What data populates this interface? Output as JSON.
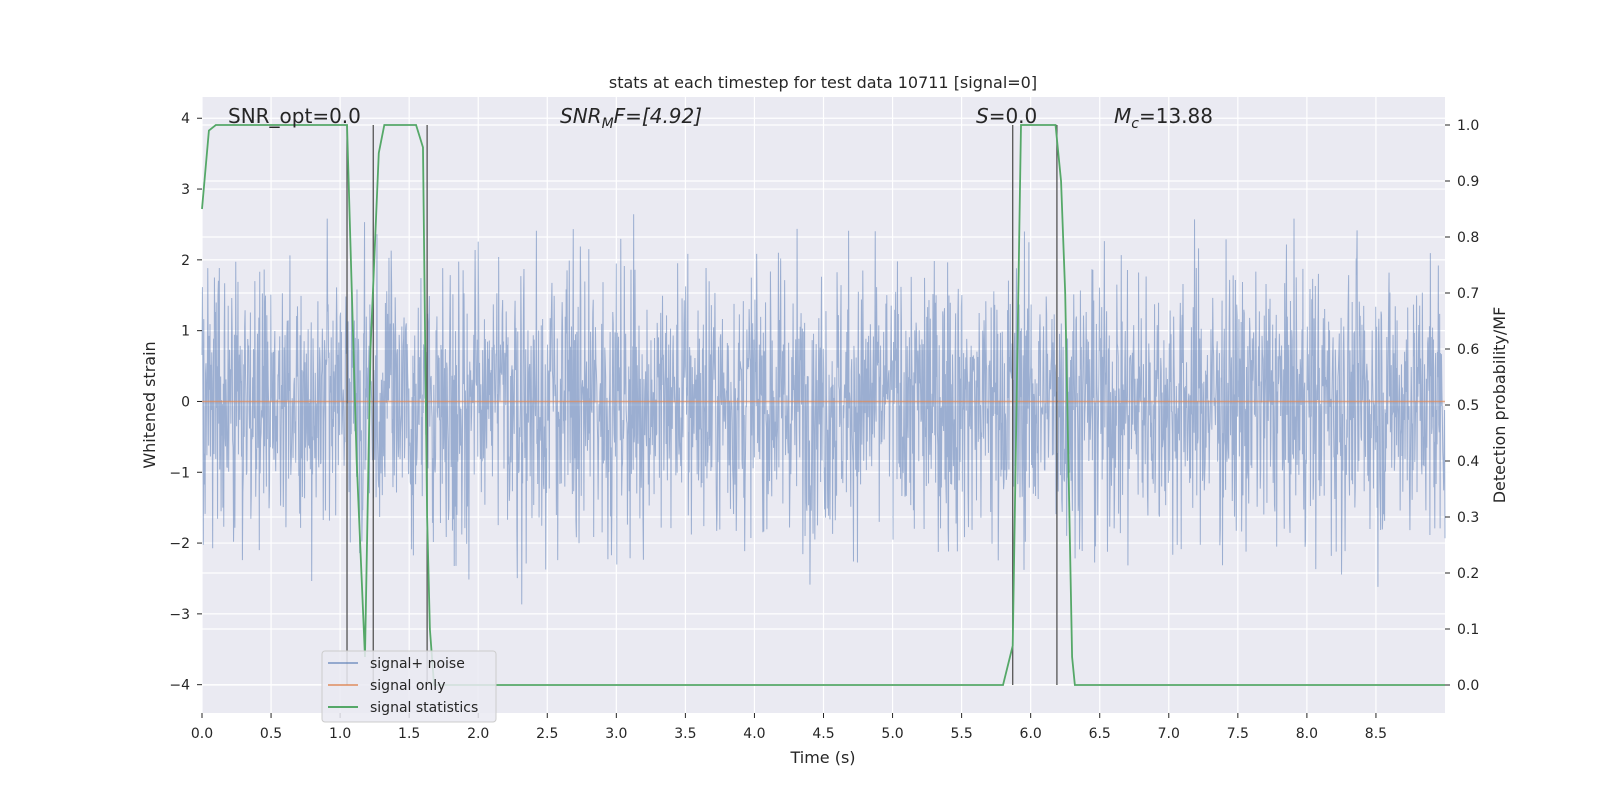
{
  "chart_data": {
    "type": "line",
    "title": "stats at each timestep for test data 10711 [signal=0]",
    "xlabel": "Time (s)",
    "ylabel_left": "Whitened strain",
    "ylabel_right": "Detection probability/MF",
    "xlim": [
      0,
      9.0
    ],
    "ylim_left": [
      -4.4,
      4.3
    ],
    "ylim_right": [
      -0.05,
      1.05
    ],
    "x_ticks": [
      0.0,
      0.5,
      1.0,
      1.5,
      2.0,
      2.5,
      3.0,
      3.5,
      4.0,
      4.5,
      5.0,
      5.5,
      6.0,
      6.5,
      7.0,
      7.5,
      8.0,
      8.5
    ],
    "x_tick_labels": [
      "0.0",
      "0.5",
      "1.0",
      "1.5",
      "2.0",
      "2.5",
      "3.0",
      "3.5",
      "4.0",
      "4.5",
      "5.0",
      "5.5",
      "6.0",
      "6.5",
      "7.0",
      "7.5",
      "8.0",
      "8.5"
    ],
    "y_left_ticks": [
      4,
      3,
      2,
      1,
      0,
      -1,
      -2,
      -3,
      -4
    ],
    "y_left_tick_labels": [
      "4",
      "3",
      "2",
      "1",
      "0",
      "−1",
      "−2",
      "−3",
      "−4"
    ],
    "y_right_ticks": [
      1.0,
      0.9,
      0.8,
      0.7,
      0.6,
      0.5,
      0.4,
      0.3,
      0.2,
      0.1,
      0.0
    ],
    "y_right_tick_labels": [
      "1.0",
      "0.9",
      "0.8",
      "0.7",
      "0.6",
      "0.5",
      "0.4",
      "0.3",
      "0.2",
      "0.1",
      "0.0"
    ],
    "grid": true,
    "legend_placement": "lower-left",
    "colors": {
      "background": "#eaeaf2",
      "noise": "#4c72b0",
      "signal_only": "#dd8452",
      "statistics": "#55a868",
      "vlines": "#555555"
    },
    "annotations": {
      "snr_opt": "SNR_opt=0.0",
      "snr_mf_main": "SNR",
      "snr_mf_sub": "M",
      "snr_mf_rest": "F=[4.92]",
      "s_var": "S",
      "s_rest": "=0.0",
      "mc_var": "M",
      "mc_sub": "c",
      "mc_rest": "=13.88"
    },
    "series": [
      {
        "name": "signal+ noise",
        "description_of_values": "whitened strain noise, approximately Gaussian with unit variance, extremes roughly -3.9 to 3.8",
        "axis": "left"
      },
      {
        "name": "signal only",
        "axis": "left",
        "value": 0.0
      },
      {
        "name": "signal statistics",
        "axis": "right",
        "x": [
          0.0,
          0.05,
          0.1,
          0.2,
          1.05,
          1.12,
          1.18,
          1.22,
          1.28,
          1.32,
          1.55,
          1.6,
          1.63,
          1.65,
          1.68,
          1.7,
          5.8,
          5.85,
          5.87,
          5.93,
          5.96,
          6.18,
          6.22,
          6.25,
          6.3,
          6.32,
          9.0
        ],
        "y": [
          0.85,
          0.99,
          1.0,
          1.0,
          1.0,
          0.4,
          0.05,
          0.6,
          0.95,
          1.0,
          1.0,
          0.96,
          0.3,
          0.1,
          0.0,
          0.0,
          0.0,
          0.05,
          0.07,
          1.0,
          1.0,
          1.0,
          0.9,
          0.7,
          0.05,
          0.0,
          0.0
        ]
      }
    ],
    "vertical_lines_x": [
      1.05,
      1.24,
      1.63,
      5.87,
      6.19
    ]
  }
}
